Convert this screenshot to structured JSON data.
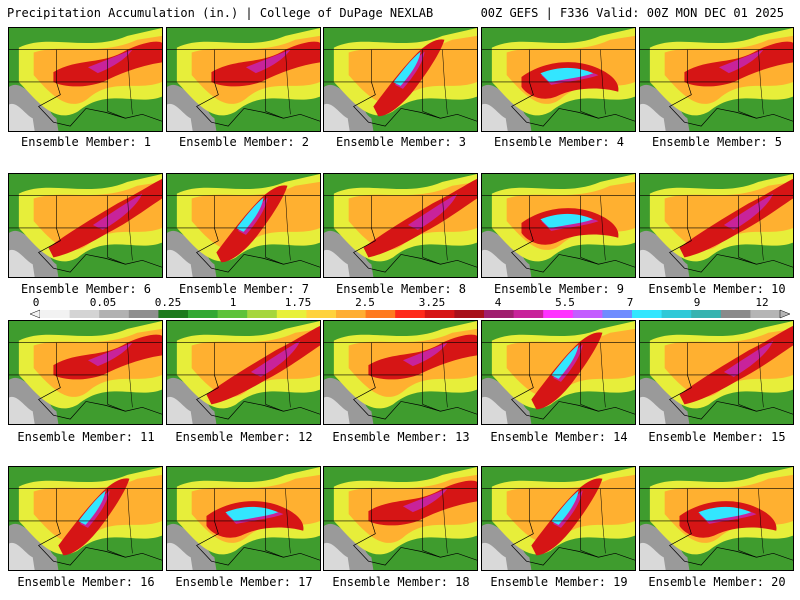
{
  "header": {
    "left_title": "Precipitation Accumulation (in.) | College of DuPage NEXLAB",
    "right_title": "00Z GEFS | F336 Valid: 00Z MON DEC 01 2025"
  },
  "colorbar": {
    "tick_labels": [
      "0",
      "0.05",
      "0.25",
      "1",
      "1.75",
      "2.5",
      "3.25",
      "4",
      "5.5",
      "7",
      "9",
      "12"
    ],
    "colors": [
      "#f2f2f2",
      "#d4d4d4",
      "#b2b2b2",
      "#8f8f8f",
      "#1d7a1d",
      "#33a833",
      "#5fc23a",
      "#a6d63d",
      "#e8f03b",
      "#ffd23c",
      "#ffae33",
      "#ff7a1f",
      "#ff2a1a",
      "#d61515",
      "#a8101a",
      "#a01e6e",
      "#c8239a",
      "#ff33ff",
      "#c35eff",
      "#6f8cff",
      "#33e6ff",
      "#2fc9d8",
      "#36b3b0",
      "#8a8a8a",
      "#b5b5b5"
    ]
  },
  "members": [
    {
      "label": "Ensemble Member: 1",
      "pattern": 1
    },
    {
      "label": "Ensemble Member: 2",
      "pattern": 1
    },
    {
      "label": "Ensemble Member: 3",
      "pattern": 3
    },
    {
      "label": "Ensemble Member: 4",
      "pattern": 4
    },
    {
      "label": "Ensemble Member: 5",
      "pattern": 1
    },
    {
      "label": "Ensemble Member: 6",
      "pattern": 2
    },
    {
      "label": "Ensemble Member: 7",
      "pattern": 3
    },
    {
      "label": "Ensemble Member: 8",
      "pattern": 2
    },
    {
      "label": "Ensemble Member: 9",
      "pattern": 4
    },
    {
      "label": "Ensemble Member: 10",
      "pattern": 2
    },
    {
      "label": "Ensemble Member: 11",
      "pattern": 1
    },
    {
      "label": "Ensemble Member: 12",
      "pattern": 2
    },
    {
      "label": "Ensemble Member: 13",
      "pattern": 1
    },
    {
      "label": "Ensemble Member: 14",
      "pattern": 3
    },
    {
      "label": "Ensemble Member: 15",
      "pattern": 2
    },
    {
      "label": "Ensemble Member: 16",
      "pattern": 3
    },
    {
      "label": "Ensemble Member: 17",
      "pattern": 4
    },
    {
      "label": "Ensemble Member: 18",
      "pattern": 1
    },
    {
      "label": "Ensemble Member: 19",
      "pattern": 3
    },
    {
      "label": "Ensemble Member: 20",
      "pattern": 4
    }
  ]
}
